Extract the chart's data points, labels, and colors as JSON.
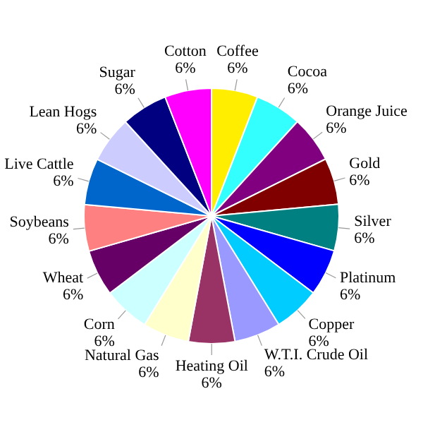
{
  "chart_data": {
    "type": "pie",
    "categories": [
      "Coffee",
      "Cocoa",
      "Orange Juice",
      "Gold",
      "Silver",
      "Platinum",
      "Copper",
      "W.T.I. Crude Oil",
      "Heating Oil",
      "Natural Gas",
      "Corn",
      "Wheat",
      "Soybeans",
      "Live Cattle",
      "Lean Hogs",
      "Sugar",
      "Cotton"
    ],
    "values": [
      5.88,
      5.88,
      5.88,
      5.88,
      5.88,
      5.88,
      5.88,
      5.88,
      5.88,
      5.88,
      5.88,
      5.88,
      5.88,
      5.88,
      5.88,
      5.88,
      5.92
    ],
    "colors": [
      "#ffee00",
      "#33ffff",
      "#800080",
      "#800000",
      "#008080",
      "#0000ff",
      "#00ccff",
      "#9999ff",
      "#993366",
      "#ffffcc",
      "#ccffff",
      "#660066",
      "#ff8080",
      "#0066cc",
      "#ccccff",
      "#000080",
      "#ff00ff"
    ],
    "value_labels": [
      "6%",
      "6%",
      "6%",
      "6%",
      "6%",
      "6%",
      "6%",
      "6%",
      "6%",
      "6%",
      "6%",
      "6%",
      "6%",
      "6%",
      "6%",
      "6%",
      "6%"
    ]
  }
}
